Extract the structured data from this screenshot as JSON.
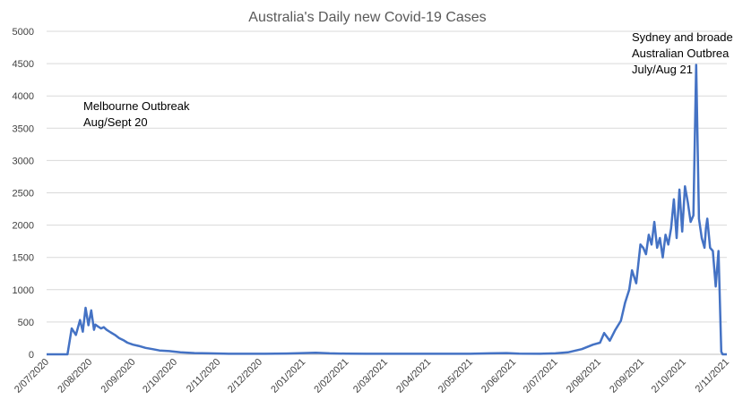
{
  "chart_data": {
    "type": "line",
    "title": "Australia's Daily new Covid-19 Cases",
    "xlabel": "",
    "ylabel": "",
    "ylim": [
      0,
      5000
    ],
    "yticks": [
      0,
      500,
      1000,
      1500,
      2000,
      2500,
      3000,
      3500,
      4000,
      4500,
      5000
    ],
    "xticks": [
      "2/07/2020",
      "2/08/2020",
      "2/09/2020",
      "2/10/2020",
      "2/11/2020",
      "2/12/2020",
      "2/01/2021",
      "2/02/2021",
      "2/03/2021",
      "2/04/2021",
      "2/05/2021",
      "2/06/2021",
      "2/07/2021",
      "2/08/2021",
      "2/09/2021",
      "2/10/2021",
      "2/11/2021"
    ],
    "grid": true,
    "line_color": "#4472C4",
    "annotations": [
      {
        "lines": [
          "Melbourne Outbreak",
          "Aug/Sept 20"
        ],
        "x": "2/08/2020"
      },
      {
        "lines": [
          "Sydney and broade",
          "Australian Outbrea",
          "July/Aug 21"
        ],
        "x": "2/10/2021"
      }
    ],
    "series": [
      {
        "x": [
          "2020-07-01",
          "2020-07-16",
          "2020-07-19",
          "2020-07-22",
          "2020-07-25",
          "2020-07-27",
          "2020-07-29",
          "2020-07-31",
          "2020-08-02",
          "2020-08-04",
          "2020-08-05",
          "2020-08-07",
          "2020-08-09",
          "2020-08-11",
          "2020-08-13",
          "2020-08-16",
          "2020-08-19",
          "2020-08-22",
          "2020-08-25",
          "2020-08-28",
          "2020-09-01",
          "2020-09-05",
          "2020-09-10",
          "2020-09-15",
          "2020-09-20",
          "2020-09-27",
          "2020-10-05",
          "2020-10-15",
          "2020-10-25",
          "2020-11-05",
          "2020-11-20",
          "2020-12-05",
          "2020-12-20",
          "2021-01-01",
          "2021-01-10",
          "2021-01-20",
          "2021-02-01",
          "2021-02-15",
          "2021-03-01",
          "2021-03-15",
          "2021-04-01",
          "2021-04-15",
          "2021-05-01",
          "2021-05-15",
          "2021-05-27",
          "2021-06-05",
          "2021-06-20",
          "2021-07-01",
          "2021-07-10",
          "2021-07-20",
          "2021-07-28",
          "2021-08-02",
          "2021-08-05",
          "2021-08-09",
          "2021-08-13",
          "2021-08-17",
          "2021-08-20",
          "2021-08-23",
          "2021-08-25",
          "2021-08-28",
          "2021-08-31",
          "2021-09-02",
          "2021-09-04",
          "2021-09-06",
          "2021-09-08",
          "2021-09-10",
          "2021-09-12",
          "2021-09-14",
          "2021-09-16",
          "2021-09-18",
          "2021-09-20",
          "2021-09-22",
          "2021-09-24",
          "2021-09-26",
          "2021-09-28",
          "2021-09-30",
          "2021-10-02",
          "2021-10-04",
          "2021-10-06",
          "2021-10-08",
          "2021-10-10",
          "2021-10-12",
          "2021-10-14",
          "2021-10-16",
          "2021-10-17",
          "2021-10-18",
          "2021-10-20",
          "2021-10-22",
          "2021-10-24",
          "2021-10-26",
          "2021-10-28",
          "2021-10-29",
          "2021-10-31",
          "2021-11-01"
        ],
        "values": [
          0,
          0,
          400,
          300,
          530,
          350,
          720,
          450,
          680,
          380,
          460,
          430,
          400,
          420,
          380,
          340,
          300,
          250,
          220,
          180,
          150,
          130,
          100,
          80,
          60,
          50,
          30,
          20,
          15,
          10,
          8,
          8,
          12,
          20,
          25,
          15,
          10,
          8,
          8,
          8,
          8,
          8,
          8,
          15,
          20,
          10,
          8,
          15,
          30,
          80,
          150,
          180,
          330,
          210,
          380,
          520,
          800,
          1000,
          1300,
          1100,
          1700,
          1650,
          1550,
          1850,
          1700,
          2050,
          1650,
          1800,
          1500,
          1850,
          1700,
          1950,
          2400,
          1800,
          2550,
          1900,
          2600,
          2350,
          2050,
          2150,
          4480,
          2100,
          1800,
          1650,
          1950,
          2100,
          1650,
          1600,
          1050,
          1600,
          40,
          0,
          0,
          0
        ]
      }
    ]
  }
}
